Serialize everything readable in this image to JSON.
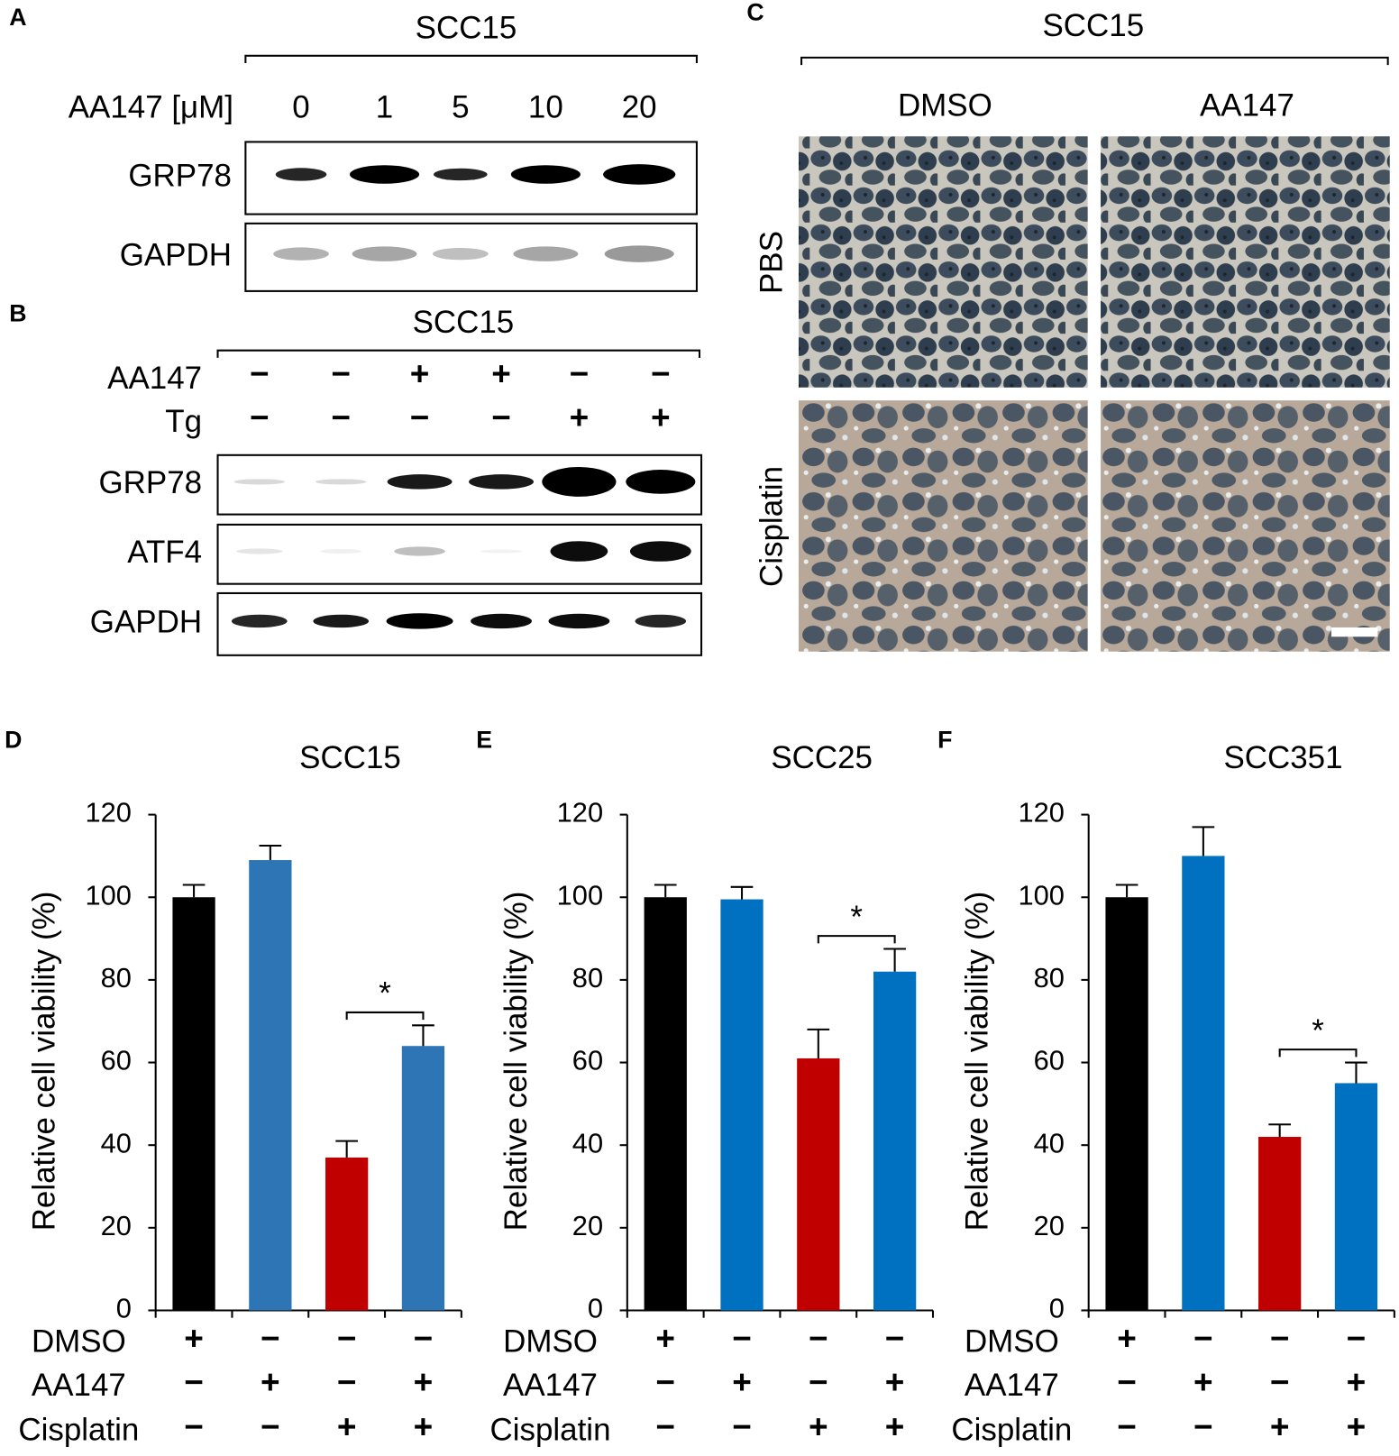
{
  "panel_a": {
    "letter": "A",
    "title": "SCC15",
    "dose_label": "AA147 [μM]",
    "doses": [
      "0",
      "1",
      "5",
      "10",
      "20"
    ],
    "blots": [
      "GRP78",
      "GAPDH"
    ]
  },
  "panel_b": {
    "letter": "B",
    "title": "SCC15",
    "treatments": [
      {
        "name": "AA147",
        "signs": [
          "−",
          "−",
          "+",
          "+",
          "−",
          "−"
        ]
      },
      {
        "name": "Tg",
        "signs": [
          "−",
          "−",
          "−",
          "−",
          "+",
          "+"
        ]
      }
    ],
    "blots": [
      "GRP78",
      "ATF4",
      "GAPDH"
    ]
  },
  "panel_c": {
    "letter": "C",
    "title": "SCC15",
    "columns": [
      "DMSO",
      "AA147"
    ],
    "rows": [
      "PBS",
      "Cisplatin"
    ]
  },
  "chart_data": [
    {
      "type": "bar",
      "letter": "D",
      "title": "SCC15",
      "y_label": "Relative cell viability (%)",
      "ylim": [
        0,
        120
      ],
      "yticks": [
        0,
        20,
        40,
        60,
        80,
        100,
        120
      ],
      "values": [
        100,
        109,
        37,
        64
      ],
      "errors": [
        3,
        3.5,
        4,
        5
      ],
      "colors": [
        "#000000",
        "#2e75b6",
        "#c00000",
        "#2e75b6"
      ],
      "significance": "*",
      "treatments": [
        {
          "name": "DMSO",
          "signs": [
            "+",
            "−",
            "−",
            "−"
          ]
        },
        {
          "name": "AA147",
          "signs": [
            "−",
            "+",
            "−",
            "+"
          ]
        },
        {
          "name": "Cisplatin",
          "signs": [
            "−",
            "−",
            "+",
            "+"
          ]
        }
      ]
    },
    {
      "type": "bar",
      "letter": "E",
      "title": "SCC25",
      "y_label": "Relative cell viability (%)",
      "ylim": [
        0,
        120
      ],
      "yticks": [
        0,
        20,
        40,
        60,
        80,
        100,
        120
      ],
      "values": [
        100,
        99.5,
        61,
        82
      ],
      "errors": [
        3,
        3,
        7,
        5.5
      ],
      "colors": [
        "#000000",
        "#0070c0",
        "#c00000",
        "#0070c0"
      ],
      "significance": "*",
      "treatments": [
        {
          "name": "DMSO",
          "signs": [
            "+",
            "−",
            "−",
            "−"
          ]
        },
        {
          "name": "AA147",
          "signs": [
            "−",
            "+",
            "−",
            "+"
          ]
        },
        {
          "name": "Cisplatin",
          "signs": [
            "−",
            "−",
            "+",
            "+"
          ]
        }
      ]
    },
    {
      "type": "bar",
      "letter": "F",
      "title": "SCC351",
      "y_label": "Relative cell viability (%)",
      "ylim": [
        0,
        120
      ],
      "yticks": [
        0,
        20,
        40,
        60,
        80,
        100,
        120
      ],
      "values": [
        100,
        110,
        42,
        55
      ],
      "errors": [
        3,
        7,
        3,
        5
      ],
      "colors": [
        "#000000",
        "#0070c0",
        "#c00000",
        "#0070c0"
      ],
      "significance": "*",
      "treatments": [
        {
          "name": "DMSO",
          "signs": [
            "+",
            "−",
            "−",
            "−"
          ]
        },
        {
          "name": "AA147",
          "signs": [
            "−",
            "+",
            "−",
            "+"
          ]
        },
        {
          "name": "Cisplatin",
          "signs": [
            "−",
            "−",
            "+",
            "+"
          ]
        }
      ]
    }
  ]
}
